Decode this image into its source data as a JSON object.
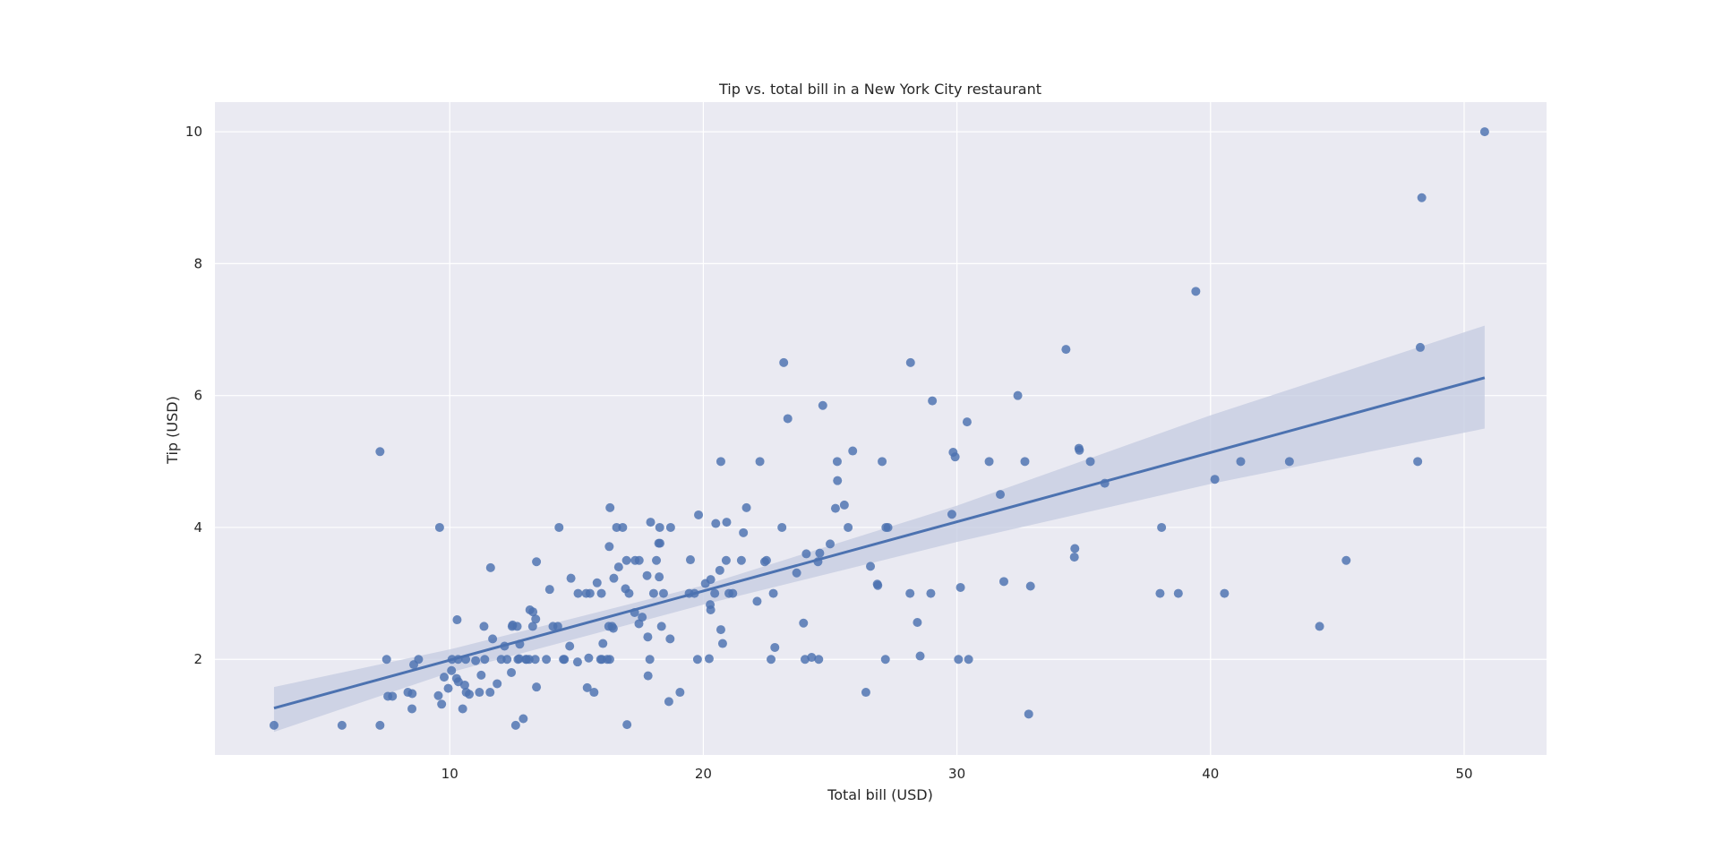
{
  "chart_data": {
    "type": "scatter",
    "title": "Tip vs. total bill in a New York City restaurant",
    "xlabel": "Total bill (USD)",
    "ylabel": "Tip (USD)",
    "xlim": [
      0.74,
      53.25
    ],
    "ylim": [
      0.55,
      10.45
    ],
    "x_ticks": [
      10,
      20,
      30,
      40,
      50
    ],
    "y_ticks": [
      2,
      4,
      6,
      8,
      10
    ],
    "grid": true,
    "colors": {
      "background": "#eaeaf2",
      "grid": "#ffffff",
      "points": "#4c72b0",
      "regression_line": "#4c72b0",
      "confidence_band": "#c4cbe0"
    },
    "regression": {
      "x_range": [
        3.07,
        50.81
      ],
      "y_range": [
        1.26,
        6.27
      ],
      "ci_lower": [
        [
          3.07,
          0.9
        ],
        [
          10,
          1.8
        ],
        [
          20,
          2.83
        ],
        [
          30,
          3.78
        ],
        [
          40,
          4.66
        ],
        [
          50.81,
          5.5
        ]
      ],
      "ci_upper": [
        [
          3.07,
          1.58
        ],
        [
          10,
          2.15
        ],
        [
          20,
          3.12
        ],
        [
          30,
          4.33
        ],
        [
          40,
          5.7
        ],
        [
          50.81,
          7.06
        ]
      ]
    },
    "points": [
      [
        3.07,
        1.0
      ],
      [
        5.75,
        1.0
      ],
      [
        7.25,
        1.0
      ],
      [
        7.25,
        5.15
      ],
      [
        7.51,
        2.0
      ],
      [
        7.56,
        1.44
      ],
      [
        7.74,
        1.44
      ],
      [
        8.35,
        1.5
      ],
      [
        8.51,
        1.25
      ],
      [
        8.52,
        1.48
      ],
      [
        8.58,
        1.92
      ],
      [
        8.77,
        2.0
      ],
      [
        9.55,
        1.45
      ],
      [
        9.6,
        4.0
      ],
      [
        9.68,
        1.32
      ],
      [
        9.78,
        1.73
      ],
      [
        9.94,
        1.56
      ],
      [
        10.07,
        1.83
      ],
      [
        10.09,
        2.0
      ],
      [
        10.27,
        1.71
      ],
      [
        10.29,
        2.6
      ],
      [
        10.33,
        2.0
      ],
      [
        10.34,
        1.66
      ],
      [
        10.51,
        1.25
      ],
      [
        10.59,
        1.61
      ],
      [
        10.63,
        2.0
      ],
      [
        10.65,
        1.5
      ],
      [
        10.77,
        1.47
      ],
      [
        11.02,
        1.98
      ],
      [
        11.17,
        1.5
      ],
      [
        11.24,
        1.76
      ],
      [
        11.35,
        2.5
      ],
      [
        11.38,
        2.0
      ],
      [
        11.59,
        1.5
      ],
      [
        11.61,
        3.39
      ],
      [
        11.69,
        2.31
      ],
      [
        11.87,
        1.63
      ],
      [
        12.03,
        2.0
      ],
      [
        12.16,
        2.2
      ],
      [
        12.26,
        2.0
      ],
      [
        12.43,
        1.8
      ],
      [
        12.46,
        2.5
      ],
      [
        12.48,
        2.52
      ],
      [
        12.6,
        1.0
      ],
      [
        12.66,
        2.5
      ],
      [
        12.69,
        2.0
      ],
      [
        12.74,
        2.01
      ],
      [
        12.76,
        2.23
      ],
      [
        12.9,
        1.1
      ],
      [
        13.0,
        2.0
      ],
      [
        13.03,
        2.0
      ],
      [
        13.13,
        2.0
      ],
      [
        13.16,
        2.75
      ],
      [
        13.27,
        2.5
      ],
      [
        13.28,
        2.72
      ],
      [
        13.37,
        2.0
      ],
      [
        13.39,
        2.61
      ],
      [
        13.42,
        1.58
      ],
      [
        13.42,
        3.48
      ],
      [
        13.81,
        2.0
      ],
      [
        13.94,
        3.06
      ],
      [
        14.07,
        2.5
      ],
      [
        14.26,
        2.5
      ],
      [
        14.31,
        4.0
      ],
      [
        14.48,
        2.0
      ],
      [
        14.52,
        2.0
      ],
      [
        14.73,
        2.2
      ],
      [
        14.78,
        3.23
      ],
      [
        15.04,
        1.96
      ],
      [
        15.06,
        3.0
      ],
      [
        15.38,
        3.0
      ],
      [
        15.42,
        1.57
      ],
      [
        15.48,
        2.02
      ],
      [
        15.53,
        3.0
      ],
      [
        15.69,
        1.5
      ],
      [
        15.81,
        3.16
      ],
      [
        15.95,
        2.0
      ],
      [
        15.98,
        3.0
      ],
      [
        16.0,
        2.0
      ],
      [
        16.04,
        2.24
      ],
      [
        16.21,
        2.0
      ],
      [
        16.27,
        2.5
      ],
      [
        16.29,
        3.71
      ],
      [
        16.31,
        2.0
      ],
      [
        16.32,
        4.3
      ],
      [
        16.4,
        2.5
      ],
      [
        16.45,
        2.47
      ],
      [
        16.47,
        3.23
      ],
      [
        16.58,
        4.0
      ],
      [
        16.66,
        3.4
      ],
      [
        16.82,
        4.0
      ],
      [
        16.93,
        3.07
      ],
      [
        16.97,
        3.5
      ],
      [
        16.99,
        1.01
      ],
      [
        17.07,
        3.0
      ],
      [
        17.29,
        2.71
      ],
      [
        17.31,
        3.5
      ],
      [
        17.46,
        2.54
      ],
      [
        17.47,
        3.5
      ],
      [
        17.59,
        2.64
      ],
      [
        17.78,
        3.27
      ],
      [
        17.81,
        2.34
      ],
      [
        17.82,
        1.75
      ],
      [
        17.89,
        2.0
      ],
      [
        17.92,
        4.08
      ],
      [
        18.04,
        3.0
      ],
      [
        18.15,
        3.5
      ],
      [
        18.24,
        3.76
      ],
      [
        18.26,
        3.25
      ],
      [
        18.28,
        4.0
      ],
      [
        18.29,
        3.76
      ],
      [
        18.35,
        2.5
      ],
      [
        18.43,
        3.0
      ],
      [
        18.64,
        1.36
      ],
      [
        18.69,
        2.31
      ],
      [
        18.71,
        4.0
      ],
      [
        19.08,
        1.5
      ],
      [
        19.44,
        3.0
      ],
      [
        19.49,
        3.51
      ],
      [
        19.65,
        3.0
      ],
      [
        19.77,
        2.0
      ],
      [
        19.81,
        4.19
      ],
      [
        20.08,
        3.15
      ],
      [
        20.23,
        2.01
      ],
      [
        20.27,
        2.83
      ],
      [
        20.29,
        2.75
      ],
      [
        20.29,
        3.21
      ],
      [
        20.45,
        3.0
      ],
      [
        20.49,
        4.06
      ],
      [
        20.65,
        3.35
      ],
      [
        20.69,
        2.45
      ],
      [
        20.69,
        5.0
      ],
      [
        20.76,
        2.24
      ],
      [
        20.9,
        3.5
      ],
      [
        20.92,
        4.08
      ],
      [
        21.01,
        3.0
      ],
      [
        21.16,
        3.0
      ],
      [
        21.5,
        3.5
      ],
      [
        21.58,
        3.92
      ],
      [
        21.7,
        4.3
      ],
      [
        22.12,
        2.88
      ],
      [
        22.23,
        5.0
      ],
      [
        22.42,
        3.48
      ],
      [
        22.49,
        3.5
      ],
      [
        22.67,
        2.0
      ],
      [
        22.76,
        3.0
      ],
      [
        22.82,
        2.18
      ],
      [
        23.1,
        4.0
      ],
      [
        23.17,
        6.5
      ],
      [
        23.33,
        5.65
      ],
      [
        23.68,
        3.31
      ],
      [
        23.95,
        2.55
      ],
      [
        24.01,
        2.0
      ],
      [
        24.06,
        3.6
      ],
      [
        24.27,
        2.03
      ],
      [
        24.52,
        3.48
      ],
      [
        24.55,
        2.0
      ],
      [
        24.59,
        3.61
      ],
      [
        24.71,
        5.85
      ],
      [
        25.0,
        3.75
      ],
      [
        25.21,
        4.29
      ],
      [
        25.28,
        5.0
      ],
      [
        25.29,
        4.71
      ],
      [
        25.56,
        4.34
      ],
      [
        25.71,
        4.0
      ],
      [
        25.89,
        5.16
      ],
      [
        26.41,
        1.5
      ],
      [
        26.59,
        3.41
      ],
      [
        26.86,
        3.14
      ],
      [
        26.88,
        3.12
      ],
      [
        27.05,
        5.0
      ],
      [
        27.18,
        2.0
      ],
      [
        27.2,
        4.0
      ],
      [
        27.28,
        4.0
      ],
      [
        28.15,
        3.0
      ],
      [
        28.17,
        6.5
      ],
      [
        28.44,
        2.56
      ],
      [
        28.55,
        2.05
      ],
      [
        28.97,
        3.0
      ],
      [
        29.03,
        5.92
      ],
      [
        29.8,
        4.2
      ],
      [
        29.85,
        5.14
      ],
      [
        29.93,
        5.07
      ],
      [
        30.06,
        2.0
      ],
      [
        30.14,
        3.09
      ],
      [
        30.4,
        5.6
      ],
      [
        30.46,
        2.0
      ],
      [
        31.27,
        5.0
      ],
      [
        31.71,
        4.5
      ],
      [
        31.85,
        3.18
      ],
      [
        32.4,
        6.0
      ],
      [
        32.68,
        5.0
      ],
      [
        32.83,
        1.17
      ],
      [
        32.9,
        3.11
      ],
      [
        34.3,
        6.7
      ],
      [
        34.63,
        3.55
      ],
      [
        34.65,
        3.68
      ],
      [
        34.81,
        5.2
      ],
      [
        34.83,
        5.17
      ],
      [
        35.26,
        5.0
      ],
      [
        35.83,
        4.67
      ],
      [
        38.01,
        3.0
      ],
      [
        38.07,
        4.0
      ],
      [
        38.73,
        3.0
      ],
      [
        39.42,
        7.58
      ],
      [
        40.17,
        4.73
      ],
      [
        40.55,
        3.0
      ],
      [
        41.19,
        5.0
      ],
      [
        43.11,
        5.0
      ],
      [
        44.3,
        2.5
      ],
      [
        45.35,
        3.5
      ],
      [
        48.17,
        5.0
      ],
      [
        48.27,
        6.73
      ],
      [
        48.33,
        9.0
      ],
      [
        50.81,
        10.0
      ]
    ]
  }
}
